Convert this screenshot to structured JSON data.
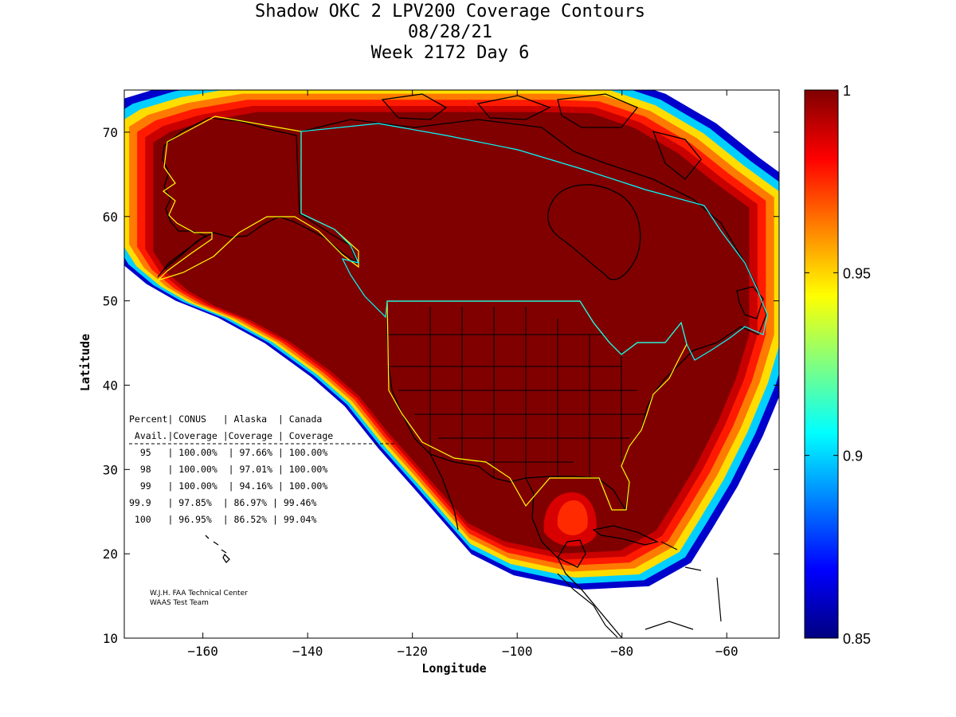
{
  "title_lines": [
    "Shadow OKC 2 LPV200 Coverage Contours",
    "08/28/21",
    "Week 2172 Day 6"
  ],
  "chart_data": {
    "type": "heatmap",
    "title": "Shadow OKC 2 LPV200 Coverage Contours",
    "xlabel": "Longitude",
    "ylabel": "Latitude",
    "xlim": [
      -175,
      -50
    ],
    "ylim": [
      10,
      75
    ],
    "xticks": [
      -160,
      -140,
      -120,
      -100,
      -80,
      -60
    ],
    "yticks": [
      10,
      20,
      30,
      40,
      50,
      60,
      70
    ],
    "xtick_labels": [
      "−160",
      "−140",
      "−120",
      "−100",
      "−80",
      "−60"
    ],
    "ytick_labels": [
      "10",
      "20",
      "30",
      "40",
      "50",
      "60",
      "70"
    ],
    "colorbar": {
      "min": 0.85,
      "max": 1,
      "ticks": [
        0.85,
        0.9,
        0.95,
        1
      ],
      "tick_labels": [
        "0.85",
        "0.9",
        "0.95",
        "1"
      ],
      "colormap": [
        "#000080",
        "#0000ff",
        "#0080ff",
        "#00ffff",
        "#80ff80",
        "#ffff00",
        "#ff8000",
        "#ff0000",
        "#800000"
      ]
    },
    "field_color": "#800000",
    "background_color": "#ffffff"
  },
  "stats_table": {
    "header_lines": [
      "Percent| CONUS   | Alaska  | Canada",
      " Avail.|Coverage |Coverage | Coverage"
    ],
    "rows": [
      "  95   | 100.00%  | 97.66% | 100.00%",
      "  98   | 100.00%  | 97.01% | 100.00%",
      "  99   | 100.00%  | 94.16% | 100.00%",
      "99.9   | 97.85%  | 86.97% | 99.46%",
      " 100   | 96.95%  | 86.52% | 99.04%"
    ]
  },
  "credit_lines": [
    "W.J.H. FAA Technical Center",
    "WAAS Test Team"
  ],
  "colors": {
    "conus_border": "#ffff00",
    "canada_border": "#00ffff",
    "coast": "#000000"
  }
}
